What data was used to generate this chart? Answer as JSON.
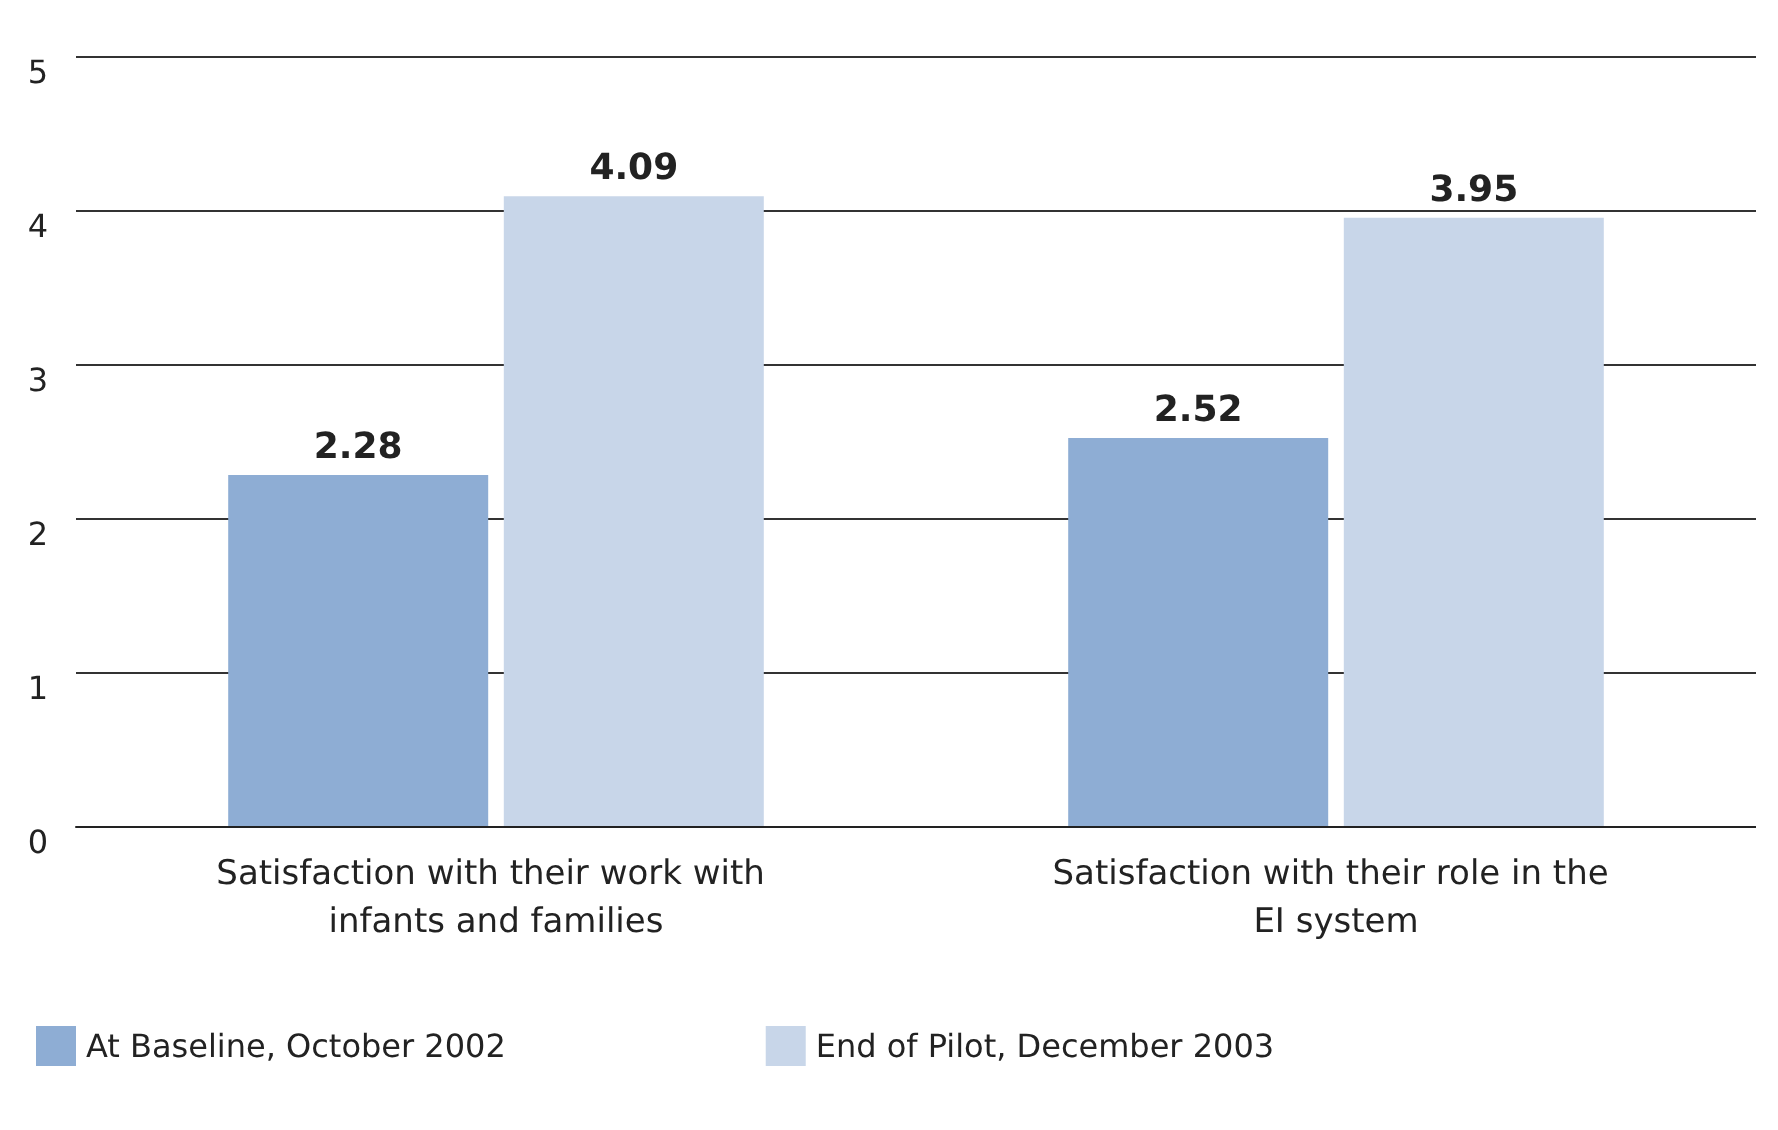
{
  "chart_data": {
    "type": "bar",
    "categories": [
      "Satisfaction with their work with infants and families",
      "Satisfaction with their role in the EI system"
    ],
    "series": [
      {
        "name": "At Baseline, October 2002",
        "color": "#8eadd4",
        "values": [
          2.28,
          2.52
        ]
      },
      {
        "name": "End of Pilot, December 2003",
        "color": "#c8d6e9",
        "values": [
          4.09,
          3.95
        ]
      }
    ],
    "ylim": [
      0,
      5
    ],
    "yticks": [
      0,
      1,
      2,
      3,
      4,
      5
    ],
    "grid": "y",
    "legend": "bottom left",
    "data_labels": true
  }
}
